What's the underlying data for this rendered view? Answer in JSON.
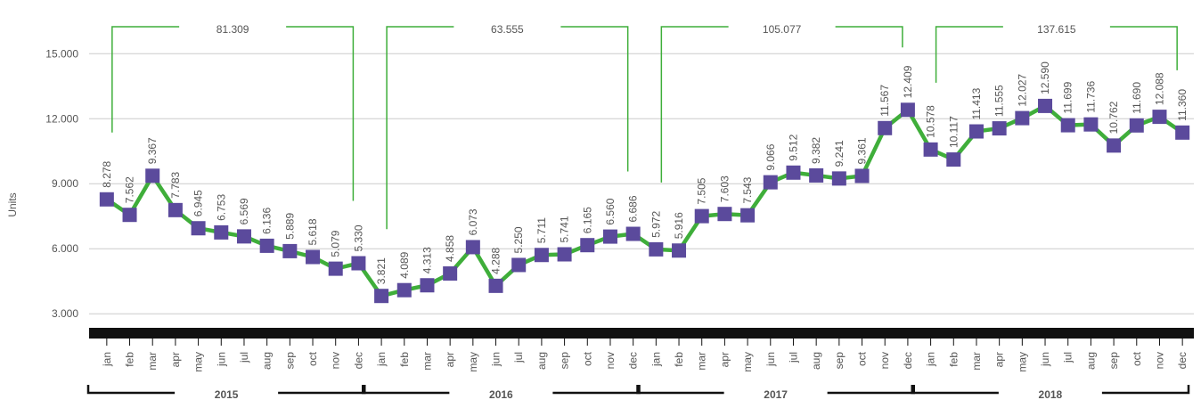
{
  "chart_data": {
    "type": "line",
    "y_label": "Units",
    "categories": [
      "jan",
      "feb",
      "mar",
      "apr",
      "may",
      "jun",
      "jul",
      "aug",
      "sep",
      "oct",
      "nov",
      "dec",
      "jan",
      "feb",
      "mar",
      "apr",
      "may",
      "jun",
      "jul",
      "aug",
      "sep",
      "oct",
      "nov",
      "dec",
      "jan",
      "feb",
      "mar",
      "apr",
      "may",
      "jun",
      "jul",
      "aug",
      "sep",
      "oct",
      "nov",
      "dec",
      "jan",
      "feb",
      "mar",
      "apr",
      "may",
      "jun",
      "jul",
      "aug",
      "sep",
      "oct",
      "nov",
      "dec"
    ],
    "values": [
      8278,
      7562,
      9367,
      7783,
      6945,
      6753,
      6569,
      6136,
      5889,
      5618,
      5079,
      5330,
      3821,
      4089,
      4313,
      4858,
      6073,
      4288,
      5250,
      5711,
      5741,
      6165,
      6560,
      6686,
      5972,
      5916,
      7505,
      7603,
      7543,
      9066,
      9512,
      9382,
      9241,
      9361,
      11567,
      12409,
      10578,
      10117,
      11413,
      11555,
      12027,
      12590,
      11699,
      11736,
      10762,
      11690,
      12088,
      11360
    ],
    "value_labels": [
      "8.278",
      "7.562",
      "9.367",
      "7.783",
      "6.945",
      "6.753",
      "6.569",
      "6.136",
      "5.889",
      "5.618",
      "5.079",
      "5.330",
      "3.821",
      "4.089",
      "4.313",
      "4.858",
      "6.073",
      "4.288",
      "5.250",
      "5.711",
      "5.741",
      "6.165",
      "6.560",
      "6.686",
      "5.972",
      "5.916",
      "7.505",
      "7.603",
      "7.543",
      "9.066",
      "9.512",
      "9.382",
      "9.241",
      "9.361",
      "11.567",
      "12.409",
      "10.578",
      "10.117",
      "11.413",
      "11.555",
      "12.027",
      "12.590",
      "11.699",
      "11.736",
      "10.762",
      "11.690",
      "12.088",
      "11.360"
    ],
    "groups": [
      {
        "name": "2015",
        "total": 81309,
        "total_label": "81.309"
      },
      {
        "name": "2016",
        "total": 63555,
        "total_label": "63.555"
      },
      {
        "name": "2017",
        "total": 105077,
        "total_label": "105.077"
      },
      {
        "name": "2018",
        "total": 137615,
        "total_label": "137.615"
      }
    ],
    "line_color": "#3fae3a",
    "marker_color": "#5b4a9c",
    "total_color": "#3fae3a",
    "ylim": [
      2350,
      16450
    ],
    "yticks": [
      {
        "value": 3000,
        "label": "3.000"
      },
      {
        "value": 6000,
        "label": "6.000"
      },
      {
        "value": 9000,
        "label": "9.000"
      },
      {
        "value": 12000,
        "label": "12.000"
      },
      {
        "value": 15000,
        "label": "15.000"
      }
    ],
    "grid": true
  }
}
